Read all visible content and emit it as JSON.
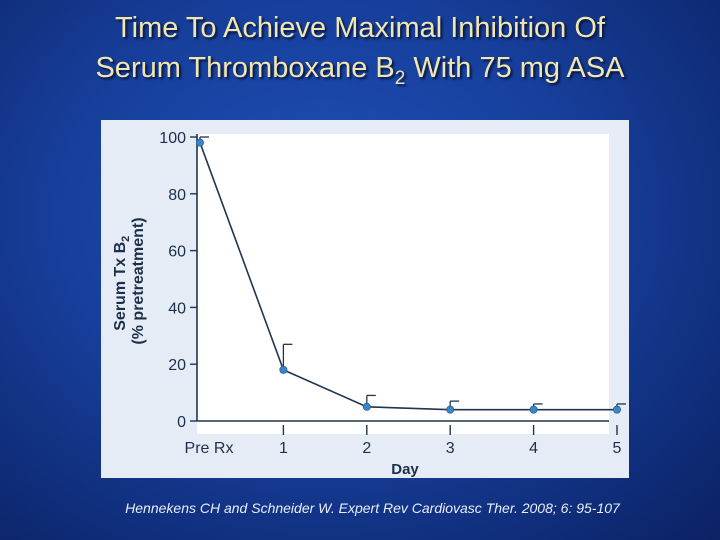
{
  "title": {
    "line1": "Time To Achieve Maximal Inhibition Of",
    "line2_pre": "Serum Thromboxane B",
    "line2_sub": "2",
    "line2_post": " With 75 mg ASA"
  },
  "citation": "Hennekens CH and Schneider W. Expert Rev Cardiovasc Ther. 2008; 6: 95-107",
  "colors": {
    "accent": "#f2e6b0",
    "line": "#1f3550",
    "marker": "#3a86c8",
    "plot_bg": "#ffffff",
    "panel_bg": "#e6ecf6"
  },
  "chart_data": {
    "type": "line",
    "title": "",
    "xlabel": "Day",
    "ylabel_line1": "Serum Tx B",
    "ylabel_sub": "2",
    "ylabel_line2": "(% pretreatment)",
    "categories": [
      "Pre Rx",
      "1",
      "2",
      "3",
      "4",
      "5"
    ],
    "y_ticks": [
      0,
      20,
      40,
      60,
      80,
      100
    ],
    "ylim": [
      0,
      100
    ],
    "grid": false,
    "series": [
      {
        "values": [
          98,
          18,
          5,
          4,
          4,
          4
        ],
        "error_upper": [
          100,
          27,
          9,
          7,
          6,
          6
        ]
      }
    ]
  }
}
